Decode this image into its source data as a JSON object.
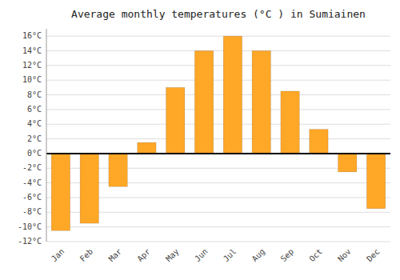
{
  "chart_data": {
    "type": "bar",
    "title": "Average monthly temperatures (°C ) in Sumiainen",
    "categories": [
      "Jan",
      "Feb",
      "Mar",
      "Apr",
      "May",
      "Jun",
      "Jul",
      "Aug",
      "Sep",
      "Oct",
      "Nov",
      "Dec"
    ],
    "values": [
      -10.5,
      -9.5,
      -4.5,
      1.5,
      9.0,
      14.0,
      16.0,
      14.0,
      8.5,
      3.3,
      -2.5,
      -7.5
    ],
    "color": "#FFA726",
    "ylim": [
      -12,
      17
    ],
    "yticks": [
      {
        "value": -12,
        "label": "-12°C"
      },
      {
        "value": -10,
        "label": "-10°C"
      },
      {
        "value": -8,
        "label": "-8°C"
      },
      {
        "value": -6,
        "label": "-6°C"
      },
      {
        "value": -4,
        "label": "-4°C"
      },
      {
        "value": -2,
        "label": "-2°C"
      },
      {
        "value": 0,
        "label": "0°C"
      },
      {
        "value": 2,
        "label": "2°C"
      },
      {
        "value": 4,
        "label": "4°C"
      },
      {
        "value": 6,
        "label": "6°C"
      },
      {
        "value": 8,
        "label": "8°C"
      },
      {
        "value": 10,
        "label": "10°C"
      },
      {
        "value": 12,
        "label": "12°C"
      },
      {
        "value": 14,
        "label": "14°C"
      },
      {
        "value": 16,
        "label": "16°C"
      }
    ],
    "grid": true
  }
}
